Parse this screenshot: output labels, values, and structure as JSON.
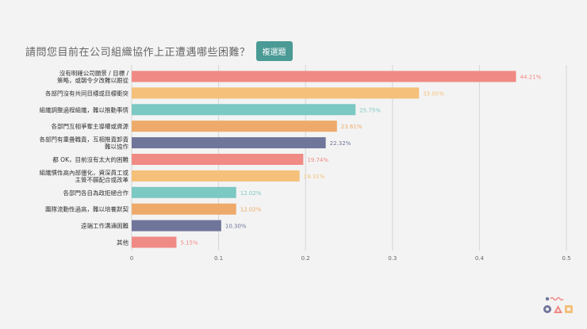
{
  "header": {
    "title": "請問您目前在公司組織協作上正遭遇哪些困難？",
    "badge": "複選題"
  },
  "chart_data": {
    "type": "bar",
    "orientation": "horizontal",
    "title": "請問您目前在公司組織協作上正遭遇哪些困難？",
    "xlim": [
      0,
      0.5
    ],
    "xticks": [
      "0",
      "0.1",
      "0.2",
      "0.3",
      "0.4",
      "0.5"
    ],
    "grid": true,
    "categories": [
      [
        "沒有明確公司願景 / 目標 /",
        "策略，或朝令夕改難以跟從"
      ],
      [
        "各部門沒有共同目標或目標衝突"
      ],
      [
        "組織調整過程組織，難以推動事情"
      ],
      [
        "各部門互相爭奪主導權或資源"
      ],
      [
        "各部門有重疊職責，互相推責卸責",
        "難以協作"
      ],
      [
        "都 OK，目前沒有太大的困難"
      ],
      [
        "組織慣性高內部僵化，資深員工或",
        "主管不願配合或改革"
      ],
      [
        "各部門各自為政拒絕合作"
      ],
      [
        "團隊流動性過高，難以培養默契"
      ],
      [
        "遠端工作溝通困難"
      ],
      [
        "其他"
      ]
    ],
    "values": [
      0.4421,
      0.3305,
      0.2575,
      0.2361,
      0.2232,
      0.1974,
      0.1931,
      0.1202,
      0.1202,
      0.103,
      0.0515
    ],
    "data_labels": [
      "44.21%",
      "33.05%",
      "25.75%",
      "23.61%",
      "22.32%",
      "19.74%",
      "19.31%",
      "12.02%",
      "12.02%",
      "10.30%",
      "5.15%"
    ],
    "colors": [
      "#f08a84",
      "#f4c07a",
      "#7cc8c3",
      "#eeaa6a",
      "#70759a",
      "#f08a84",
      "#f4c07a",
      "#7cc8c3",
      "#eeaa6a",
      "#70759a",
      "#f08a84"
    ]
  },
  "logo": {
    "colors": [
      "#70759a",
      "#f08a84",
      "#f4c07a",
      "#7cc8c3"
    ]
  }
}
